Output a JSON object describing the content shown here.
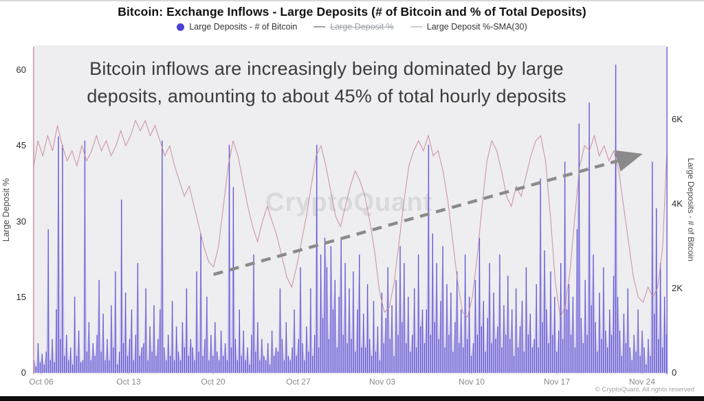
{
  "title": "Bitcoin: Exchange Inflows - Large Deposits (# of Bitcoin and % of Total Deposits)",
  "legend": [
    {
      "label": "Large Deposits - # of Bitcoin",
      "marker": "dot",
      "color": "#4a3fd6",
      "disabled": false
    },
    {
      "label": "Large Deposit %",
      "marker": "line",
      "color": "#9aa0a6",
      "disabled": true
    },
    {
      "label": "Large Deposit %-SMA(30)",
      "marker": "line",
      "color": "#c9cdd2",
      "disabled": false
    }
  ],
  "annotation": {
    "line1": "Bitcoin inflows are increasingly being dominated by large",
    "line2": "deposits, amounting to about 45% of total hourly deposits"
  },
  "watermark": "CryptoQuant",
  "copyright": "© CryptoQuant. All rights reserved",
  "left_axis": {
    "title": "Large Deposit %",
    "tick_values": [
      0,
      15,
      30,
      45,
      60
    ],
    "tick_labels": [
      "0",
      "15",
      "30",
      "45",
      "60"
    ]
  },
  "right_axis": {
    "title": "Large Deposits - # of Bitcoin",
    "tick_values": [
      0,
      2000,
      4000,
      6000
    ],
    "tick_labels": [
      "0",
      "2K",
      "4K",
      "6K"
    ]
  },
  "x_axis": {
    "labels": [
      "Oct 06",
      "Oct 13",
      "Oct 20",
      "Oct 27",
      "Nov 03",
      "Nov 10",
      "Nov 17",
      "Nov 24"
    ],
    "positions": [
      0.013,
      0.1506,
      0.2839,
      0.4182,
      0.5504,
      0.6913,
      0.8256,
      0.9599
    ]
  },
  "colors": {
    "bars": "#574bd1",
    "bars_area": "#7a71dd",
    "sma_line": "#c7899c",
    "arrow": "#8a8a8a",
    "left_axis_line": "#d49aa8",
    "right_axis_line": "#7a71dd",
    "tick_mark": "#bdbdbd",
    "plot_bg": "#eeedef"
  },
  "chart_data": {
    "type": "bar",
    "title": "Bitcoin: Exchange Inflows - Large Deposits (# of Bitcoin and % of Total Deposits)",
    "x_domain_days": 52,
    "x_note": "days since Oct 05; hourly data shown, bars aggregated to 4h buckets; x tick dates Oct 06 - Nov 24",
    "left_ylim": [
      0,
      65
    ],
    "right_ylim": [
      0,
      7800
    ],
    "legend_position": "top",
    "grid": false,
    "series": [
      {
        "name": "Large Deposits - # of Bitcoin",
        "type": "bar",
        "axis": "right",
        "unit": "BTC",
        "bucket_hours": 4,
        "values": [
          300,
          150,
          700,
          250,
          450,
          200,
          500,
          3400,
          300,
          800,
          250,
          1500,
          5600,
          800,
          5400,
          400,
          900,
          300,
          600,
          200,
          1800,
          400,
          1000,
          250,
          300,
          5500,
          500,
          1200,
          300,
          700,
          400,
          900,
          2200,
          500,
          1400,
          300,
          800,
          300,
          1600,
          600,
          2400,
          200,
          500,
          4100,
          700,
          1900,
          400,
          800,
          1500,
          300,
          900,
          2600,
          400,
          600,
          700,
          2000,
          300,
          1100,
          500,
          1600,
          400,
          800,
          1500,
          5500,
          600,
          300,
          900,
          400,
          1700,
          300,
          1100,
          500,
          300,
          1200,
          600,
          2000,
          400,
          800,
          600,
          300,
          2400,
          500,
          3300,
          400,
          800,
          1800,
          300,
          900,
          400,
          1200,
          500,
          300,
          1000,
          400,
          700,
          300,
          5400,
          600,
          4400,
          800,
          300,
          1500,
          400,
          1000,
          300,
          600,
          200,
          900,
          2800,
          500,
          1200,
          300,
          800,
          400,
          300,
          700,
          200,
          1000,
          400,
          600,
          500,
          2000,
          800,
          300,
          1200,
          400,
          300,
          600,
          1500,
          400,
          800,
          2500,
          700,
          300,
          1100,
          500,
          2000,
          400,
          900,
          5400,
          600,
          2800,
          1300,
          3200,
          2500,
          800,
          3000,
          1500,
          2200,
          600,
          1800,
          3200,
          900,
          2600,
          700,
          2000,
          800,
          2400,
          500,
          1500,
          2800,
          600,
          1400,
          600,
          2100,
          800,
          400,
          1700,
          500,
          1100,
          300,
          1900,
          700,
          1300,
          2500,
          800,
          1600,
          400,
          2200,
          900,
          3000,
          1200,
          2600,
          700,
          1800,
          500,
          900,
          2000,
          600,
          2800,
          1100,
          1500,
          700,
          1500,
          5400,
          900,
          3300,
          1200,
          2600,
          800,
          1700,
          3000,
          600,
          2100,
          900,
          1900,
          500,
          1200,
          2400,
          700,
          1500,
          600,
          2800,
          800,
          1800,
          400,
          700,
          2200,
          900,
          3200,
          1100,
          1700,
          500,
          1300,
          2600,
          700,
          1900,
          800,
          1100,
          2800,
          600,
          1600,
          900,
          2300,
          800,
          1500,
          400,
          2000,
          600,
          1100,
          1700,
          500,
          2500,
          900,
          1400,
          600,
          800,
          2100,
          600,
          4600,
          1200,
          2900,
          1500,
          700,
          2400,
          900,
          1800,
          500,
          1000,
          2600,
          800,
          5000,
          1500,
          2100,
          900,
          1800,
          600,
          3400,
          5900,
          1300,
          700,
          2200,
          900,
          6400,
          1600,
          2800,
          1200,
          500,
          1900,
          800,
          2500,
          1000,
          600,
          1500,
          900,
          2300,
          7300,
          1800,
          1000,
          400,
          1400,
          700,
          2000,
          600,
          300,
          900,
          500,
          1500,
          400,
          1000,
          600,
          200,
          800,
          400,
          5000,
          1400,
          3900,
          800,
          2600,
          600,
          1800,
          900
        ]
      },
      {
        "name": "Large Deposit %-SMA(30)",
        "type": "line",
        "axis": "left",
        "unit": "%",
        "points": [
          [
            0,
            40
          ],
          [
            0.4,
            46
          ],
          [
            0.8,
            43
          ],
          [
            1.2,
            47
          ],
          [
            1.6,
            44
          ],
          [
            2,
            49
          ],
          [
            2.4,
            45
          ],
          [
            2.8,
            42
          ],
          [
            3.2,
            44
          ],
          [
            3.6,
            41
          ],
          [
            4,
            45
          ],
          [
            4.4,
            42
          ],
          [
            4.8,
            44
          ],
          [
            5.2,
            47
          ],
          [
            5.6,
            44
          ],
          [
            6,
            46
          ],
          [
            6.4,
            43
          ],
          [
            6.8,
            45
          ],
          [
            7.2,
            48
          ],
          [
            7.6,
            45
          ],
          [
            8,
            47
          ],
          [
            8.4,
            50
          ],
          [
            8.8,
            48
          ],
          [
            9.2,
            50
          ],
          [
            9.6,
            47
          ],
          [
            10,
            49
          ],
          [
            10.4,
            46
          ],
          [
            10.8,
            43
          ],
          [
            11.2,
            45
          ],
          [
            11.6,
            41
          ],
          [
            12,
            38
          ],
          [
            12.4,
            35
          ],
          [
            12.8,
            37
          ],
          [
            13.2,
            33
          ],
          [
            13.6,
            29
          ],
          [
            14,
            25
          ],
          [
            14.4,
            22
          ],
          [
            14.8,
            21
          ],
          [
            15.2,
            25
          ],
          [
            15.6,
            33
          ],
          [
            16,
            41
          ],
          [
            16.4,
            46
          ],
          [
            16.8,
            43
          ],
          [
            17.2,
            38
          ],
          [
            17.6,
            33
          ],
          [
            18,
            29
          ],
          [
            18.4,
            26
          ],
          [
            18.8,
            30
          ],
          [
            19.2,
            33
          ],
          [
            19.6,
            30
          ],
          [
            20,
            27
          ],
          [
            20.4,
            23
          ],
          [
            20.8,
            19
          ],
          [
            21.2,
            17
          ],
          [
            21.6,
            21
          ],
          [
            22,
            26
          ],
          [
            22.4,
            31
          ],
          [
            22.8,
            37
          ],
          [
            23.2,
            43
          ],
          [
            23.6,
            45
          ],
          [
            24,
            41
          ],
          [
            24.4,
            36
          ],
          [
            24.8,
            31
          ],
          [
            25.2,
            29
          ],
          [
            25.6,
            33
          ],
          [
            26,
            37
          ],
          [
            26.4,
            40
          ],
          [
            26.8,
            38
          ],
          [
            27.2,
            35
          ],
          [
            27.6,
            30
          ],
          [
            28,
            24
          ],
          [
            28.4,
            16
          ],
          [
            28.8,
            12
          ],
          [
            29.2,
            13
          ],
          [
            29.6,
            18
          ],
          [
            30,
            26
          ],
          [
            30.4,
            34
          ],
          [
            30.8,
            41
          ],
          [
            31.2,
            44
          ],
          [
            31.6,
            46
          ],
          [
            32,
            44
          ],
          [
            32.4,
            47
          ],
          [
            32.8,
            43
          ],
          [
            33.2,
            44
          ],
          [
            33.6,
            40
          ],
          [
            34,
            34
          ],
          [
            34.4,
            26
          ],
          [
            34.8,
            18
          ],
          [
            35.2,
            12
          ],
          [
            35.6,
            11
          ],
          [
            36,
            15
          ],
          [
            36.4,
            23
          ],
          [
            36.8,
            33
          ],
          [
            37.2,
            42
          ],
          [
            37.6,
            46
          ],
          [
            38,
            44
          ],
          [
            38.4,
            40
          ],
          [
            38.8,
            35
          ],
          [
            39.2,
            33
          ],
          [
            39.6,
            37
          ],
          [
            40,
            35
          ],
          [
            40.4,
            39
          ],
          [
            40.8,
            43
          ],
          [
            41.2,
            46
          ],
          [
            41.6,
            47
          ],
          [
            42,
            42
          ],
          [
            42.4,
            31
          ],
          [
            42.8,
            18
          ],
          [
            43.2,
            11
          ],
          [
            43.6,
            13
          ],
          [
            44,
            20
          ],
          [
            44.4,
            31
          ],
          [
            44.8,
            41
          ],
          [
            45.2,
            45
          ],
          [
            45.6,
            44
          ],
          [
            46,
            47
          ],
          [
            46.4,
            43
          ],
          [
            46.8,
            45
          ],
          [
            47.2,
            42
          ],
          [
            47.6,
            44
          ],
          [
            48,
            40
          ],
          [
            48.4,
            33
          ],
          [
            48.8,
            26
          ],
          [
            49.2,
            19
          ],
          [
            49.6,
            15
          ],
          [
            50,
            14
          ],
          [
            50.4,
            17
          ],
          [
            50.8,
            15
          ],
          [
            51.2,
            17
          ],
          [
            51.6,
            25
          ],
          [
            52,
            47
          ]
        ]
      },
      {
        "name": "Large Deposit %",
        "type": "line",
        "axis": "left",
        "unit": "%",
        "hidden": true,
        "points": []
      }
    ],
    "trend_arrow": {
      "from_day": 14.8,
      "from_pct": 19.5,
      "to_day": 47.9,
      "to_pct": 42.0
    }
  }
}
